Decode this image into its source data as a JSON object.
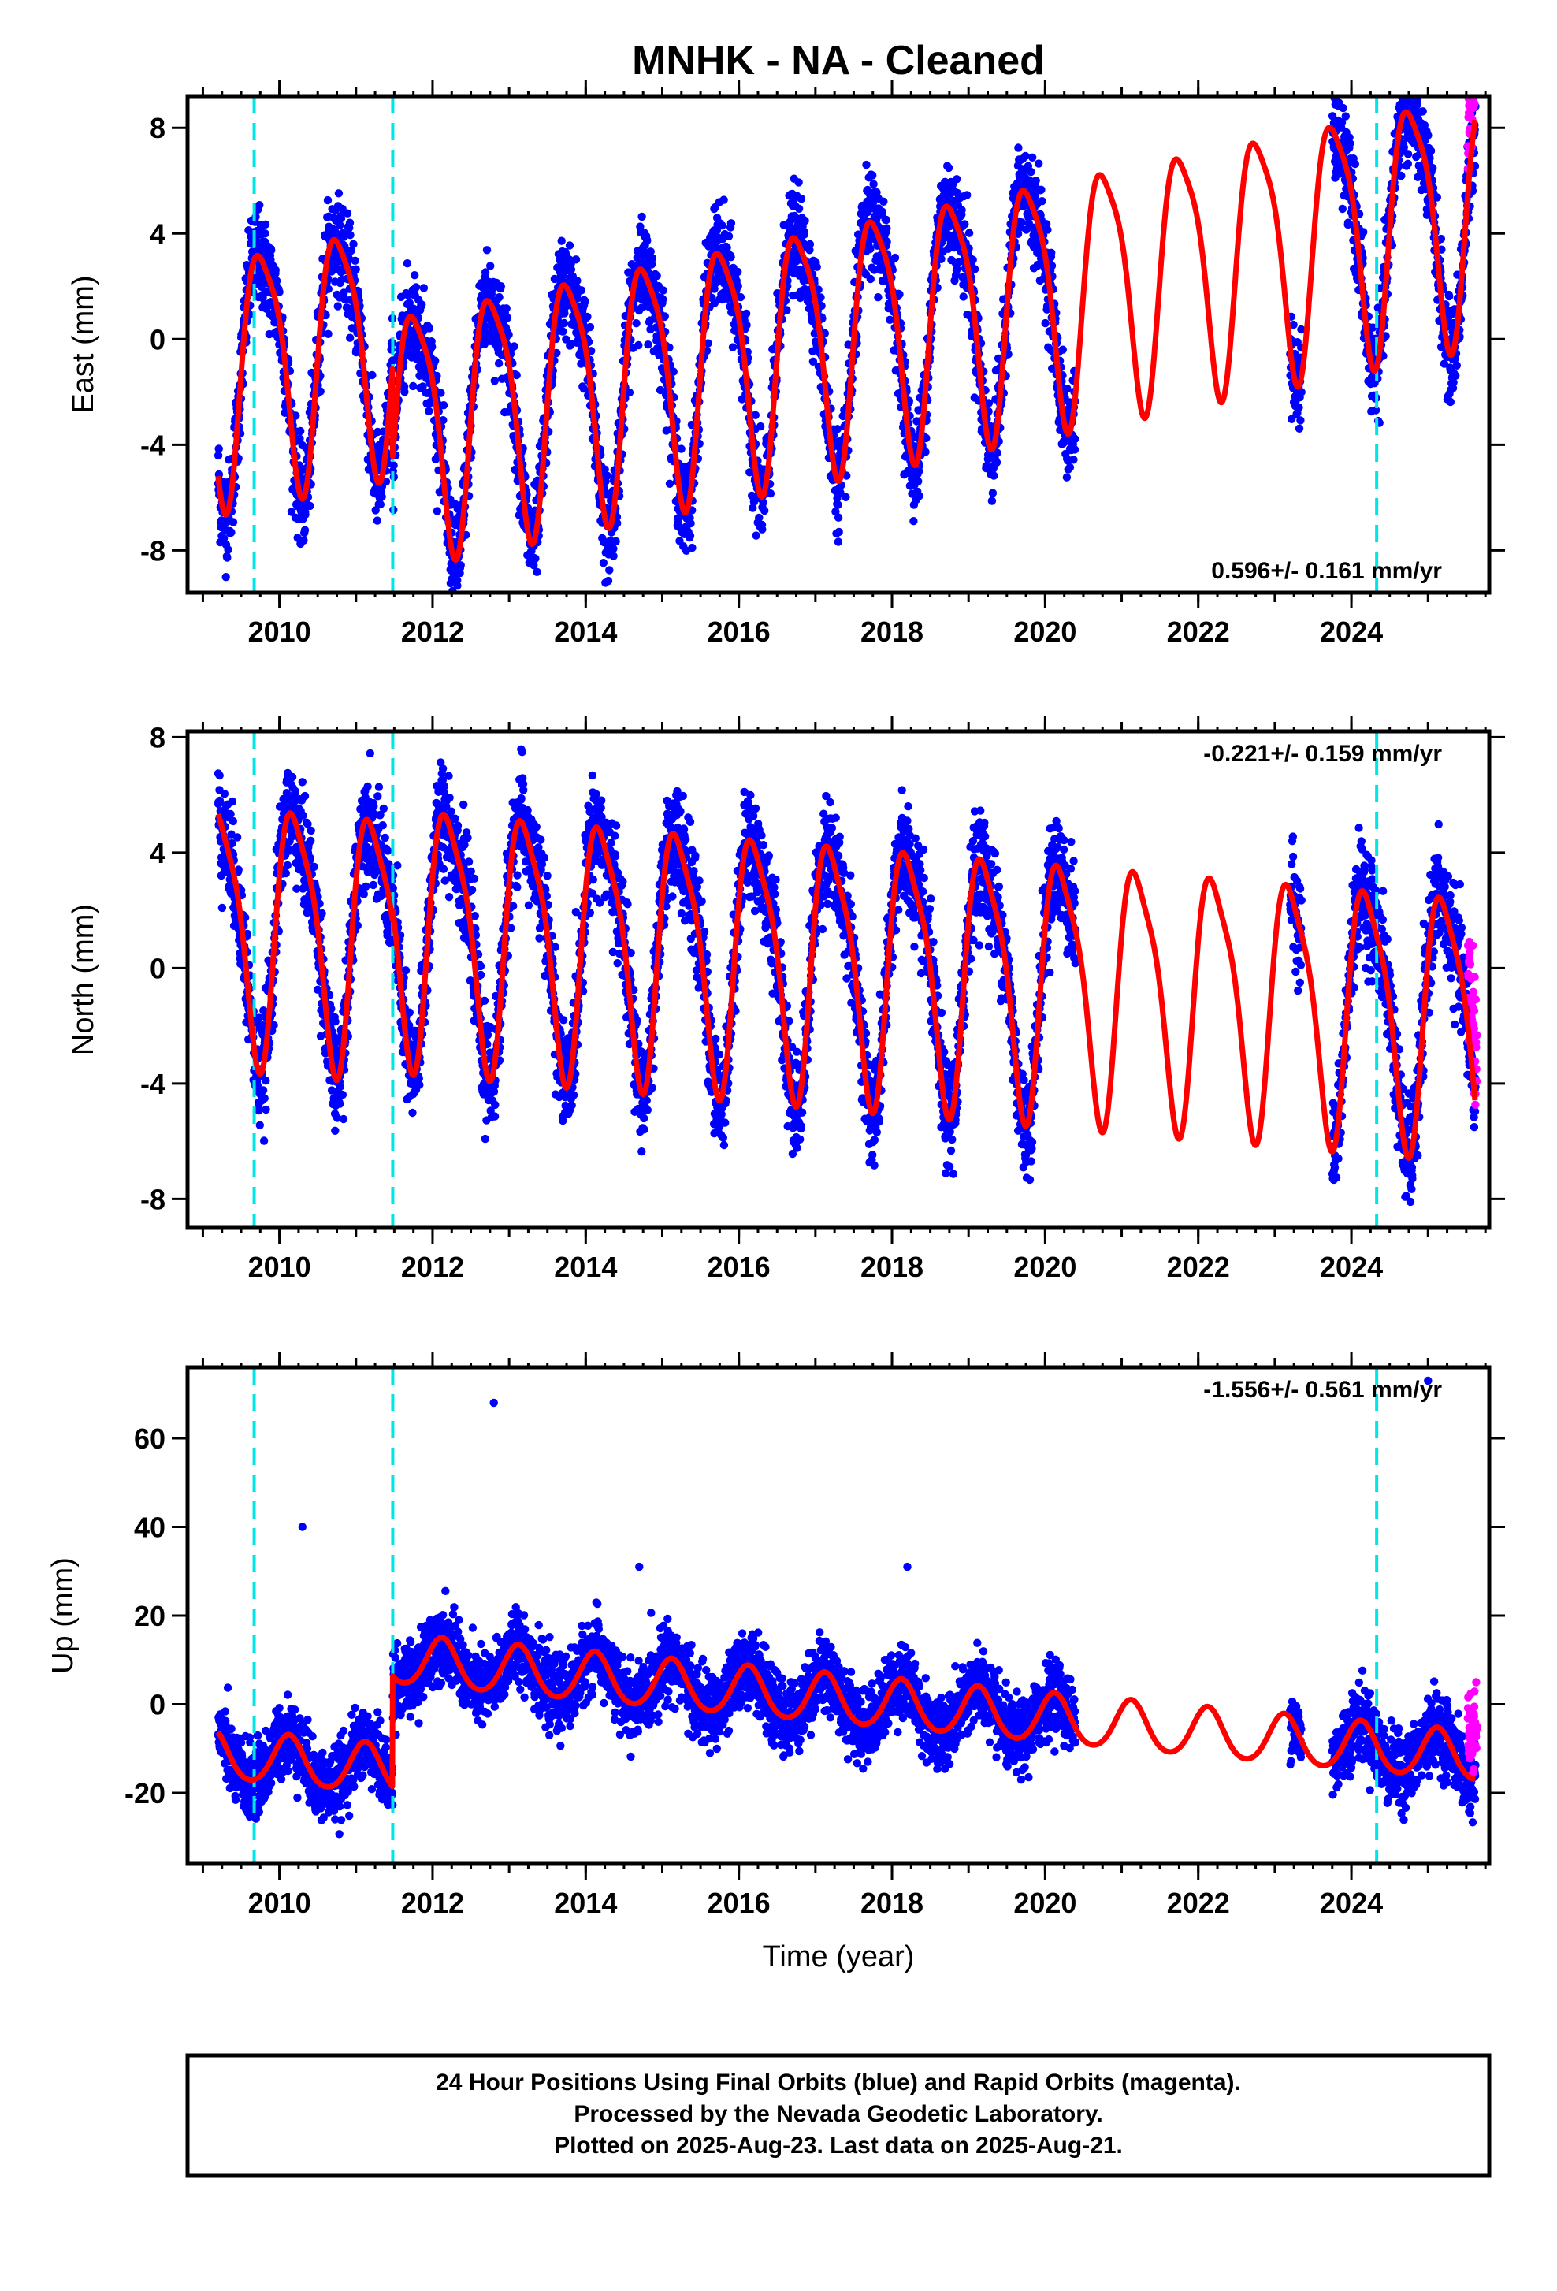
{
  "title": "MNHK  - NA - Cleaned",
  "colors": {
    "final": "#0000ff",
    "rapid": "#ff00ff",
    "model": "#ff0000",
    "offset": "#00e5e5"
  },
  "footer": {
    "line1": "24 Hour Positions Using Final Orbits (blue) and Rapid Orbits (magenta).",
    "line2": "Processed by the Nevada Geodetic Laboratory.",
    "line3": "Plotted on 2025-Aug-23. Last data on 2025-Aug-21."
  },
  "chart_data": [
    {
      "type": "scatter",
      "component": "east",
      "ylabel": "East (mm)",
      "xlabel": "",
      "rate_text": "0.596+/- 0.161 mm/yr",
      "xlim": [
        2008.8,
        2025.8
      ],
      "ylim": [
        -9.6,
        9.2
      ],
      "yticks": [
        -8,
        -4,
        0,
        4,
        8
      ],
      "xticks": [
        2010,
        2012,
        2014,
        2016,
        2018,
        2020,
        2022,
        2024
      ],
      "offset_lines": [
        2009.67,
        2011.48,
        2024.33
      ],
      "data_spans": [
        [
          2009.2,
          2020.4
        ],
        [
          2023.2,
          2023.35
        ],
        [
          2023.75,
          2025.62
        ]
      ],
      "rapid_span": [
        2025.52,
        2025.64
      ],
      "model": {
        "rate": 0.596,
        "offset": -1.2,
        "annual_amp": 4.6,
        "annual_phase": 2.95,
        "semi_amp": 1.0,
        "semi_phase": 0.6,
        "steps": [
          {
            "t": 2011.48,
            "dy": -3.5
          }
        ]
      },
      "noise": 0.9
    },
    {
      "type": "scatter",
      "component": "north",
      "ylabel": "North (mm)",
      "xlabel": "",
      "rate_text": "-0.221+/- 0.159 mm/yr",
      "xlim": [
        2008.8,
        2025.8
      ],
      "ylim": [
        -9.0,
        8.2
      ],
      "yticks": [
        -8,
        -4,
        0,
        4,
        8
      ],
      "xticks": [
        2010,
        2012,
        2014,
        2016,
        2018,
        2020,
        2022,
        2024
      ],
      "offset_lines": [
        2009.67,
        2011.48,
        2024.33
      ],
      "data_spans": [
        [
          2009.2,
          2020.4
        ],
        [
          2023.2,
          2023.35
        ],
        [
          2023.75,
          2025.62
        ]
      ],
      "rapid_span": [
        2025.52,
        2025.64
      ],
      "model": {
        "rate": -0.221,
        "offset": 1.6,
        "annual_amp": 4.3,
        "annual_phase": 0.2,
        "semi_amp": 1.0,
        "semi_phase": 1.2,
        "steps": [
          {
            "t": 2011.48,
            "dy": 0.4
          }
        ]
      },
      "noise": 0.9
    },
    {
      "type": "scatter",
      "component": "up",
      "ylabel": "Up (mm)",
      "xlabel": "Time (year)",
      "rate_text": "-1.556+/- 0.561 mm/yr",
      "xlim": [
        2008.8,
        2025.8
      ],
      "ylim": [
        -36,
        76
      ],
      "yticks": [
        -20,
        0,
        20,
        40,
        60
      ],
      "xticks": [
        2010,
        2012,
        2014,
        2016,
        2018,
        2020,
        2022,
        2024
      ],
      "offset_lines": [
        2009.67,
        2011.48,
        2024.33
      ],
      "data_spans": [
        [
          2009.2,
          2020.4
        ],
        [
          2023.2,
          2023.35
        ],
        [
          2023.75,
          2025.62
        ]
      ],
      "rapid_span": [
        2025.52,
        2025.64
      ],
      "model": {
        "rate": -1.556,
        "offset": -11.5,
        "annual_amp": 5.5,
        "annual_phase": 0.8,
        "semi_amp": 0.6,
        "semi_phase": 0.0,
        "steps": [
          {
            "t": 2011.48,
            "dy": 25.0
          }
        ]
      },
      "outliers": [
        [
          2010.3,
          40.0
        ],
        [
          2012.8,
          68.0
        ],
        [
          2018.2,
          31.0
        ],
        [
          2014.7,
          31.0
        ],
        [
          2025.0,
          73.0
        ]
      ],
      "noise": 4.0
    }
  ]
}
